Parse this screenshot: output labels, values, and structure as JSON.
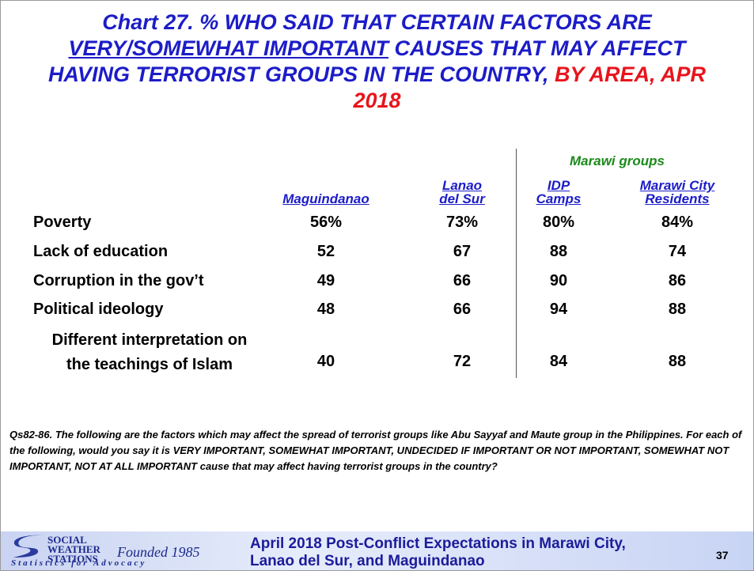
{
  "header": {
    "title_parts": [
      "Chart 27. % WHO SAID THAT CERTAIN FACTORS ARE ",
      "VERY/SOMEWHAT IMPORTANT",
      " CAUSES THAT MAY AFFECT HAVING TERRORIST GROUPS IN THE COUNTRY, ",
      "BY AREA, APR 2018"
    ]
  },
  "table": {
    "group_label": "Marawi groups",
    "columns": [
      "Maguindanao",
      "Lanao del Sur",
      "IDP Camps",
      "Marawi City Residents"
    ],
    "rows": [
      {
        "label": [
          "Poverty"
        ],
        "values": [
          "56%",
          "73%",
          "80%",
          "84%"
        ]
      },
      {
        "label": [
          "Lack of education"
        ],
        "values": [
          "52",
          "67",
          "88",
          "74"
        ]
      },
      {
        "label": [
          "Corruption in the gov’t"
        ],
        "values": [
          "49",
          "66",
          "90",
          "86"
        ]
      },
      {
        "label": [
          "Political ideology"
        ],
        "values": [
          "48",
          "66",
          "94",
          "88"
        ]
      },
      {
        "label": [
          "Different interpretation on",
          "the teachings of Islam"
        ],
        "values": [
          "40",
          "72",
          "84",
          "88"
        ]
      }
    ]
  },
  "note": "Qs82-86. The following are the factors which may affect the spread of terrorist groups like Abu Sayyaf and Maute group in the Philippines. For each of the following, would you say it is VERY IMPORTANT, SOMEWHAT IMPORTANT, UNDECIDED IF IMPORTANT OR NOT IMPORTANT, SOMEWHAT NOT IMPORTANT, NOT AT ALL IMPORTANT cause that may affect having terrorist groups in the country?",
  "footer": {
    "logo_name": "SOCIAL WEATHER STATIONS",
    "founded": "Founded 1985",
    "tagline": "Statistics for Advocacy",
    "text": "April 2018 Post-Conflict Expectations in Marawi City, Lanao del Sur, and Maguindanao",
    "page": "37"
  }
}
